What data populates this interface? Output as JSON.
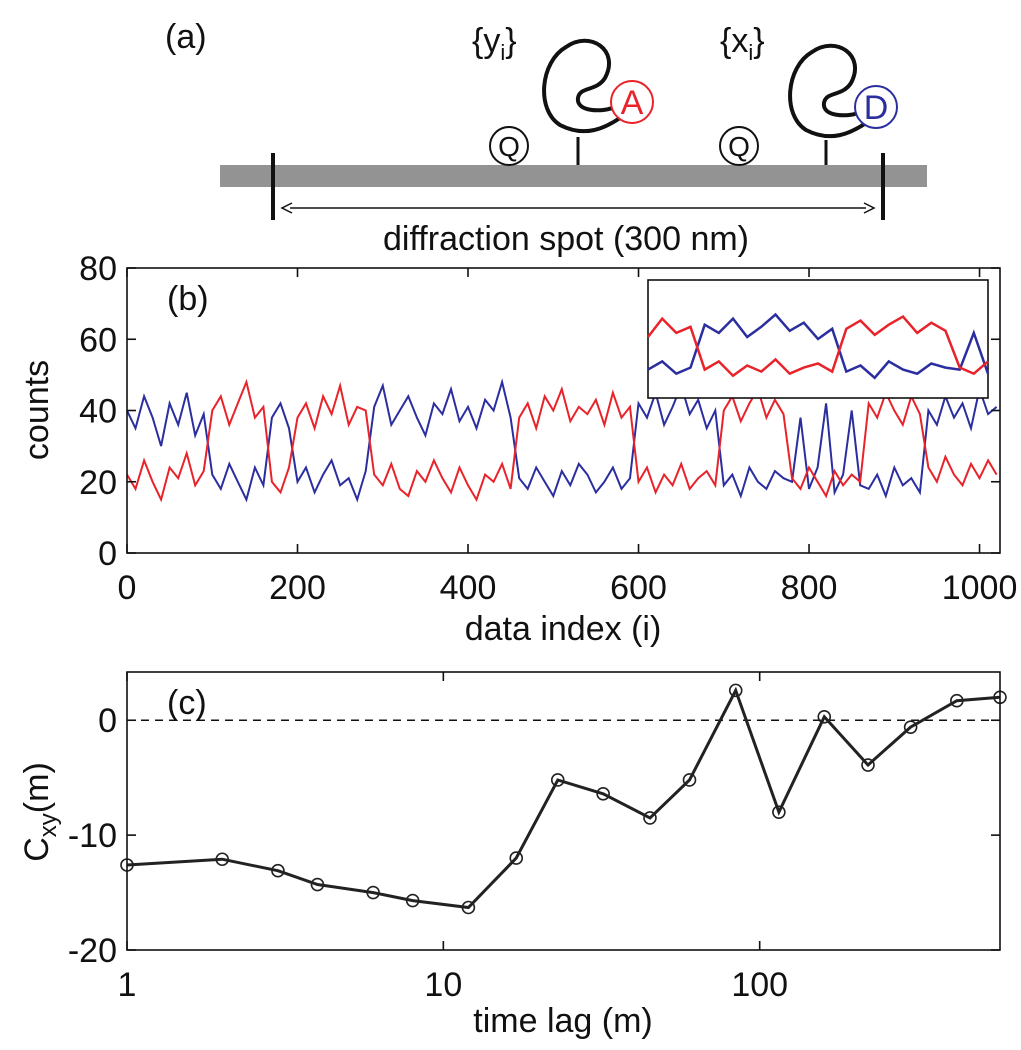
{
  "diagram": {
    "panel_label": "(a)",
    "y_open": "{y",
    "y_sub": "i",
    "y_close": "}",
    "x_open": "{x",
    "x_sub": "i",
    "x_close": "}",
    "acceptor": "A",
    "donor": "D",
    "quencher_1": "Q",
    "quencher_2": "Q",
    "spot_label": "diffraction spot (300 nm)"
  },
  "chart_data": [
    {
      "type": "line",
      "panel_label": "(b)",
      "x_label": "data index (i)",
      "y_label": "counts",
      "x": [
        0,
        10,
        20,
        30,
        40,
        50,
        60,
        70,
        80,
        90,
        100,
        110,
        120,
        130,
        140,
        150,
        160,
        170,
        180,
        190,
        200,
        210,
        220,
        230,
        240,
        250,
        260,
        270,
        280,
        290,
        300,
        310,
        320,
        330,
        340,
        350,
        360,
        370,
        380,
        390,
        400,
        410,
        420,
        430,
        440,
        450,
        460,
        470,
        480,
        490,
        500,
        510,
        520,
        530,
        540,
        550,
        560,
        570,
        580,
        590,
        600,
        610,
        620,
        630,
        640,
        650,
        660,
        670,
        680,
        690,
        700,
        710,
        720,
        730,
        740,
        750,
        760,
        770,
        780,
        790,
        800,
        810,
        820,
        830,
        840,
        850,
        860,
        870,
        880,
        890,
        900,
        910,
        920,
        930,
        940,
        950,
        960,
        970,
        980,
        990,
        1000,
        1010,
        1020
      ],
      "series": [
        {
          "name": "x_i",
          "color": "#2b2e9e",
          "values": [
            40,
            35,
            44,
            38,
            30,
            42,
            36,
            45,
            33,
            39,
            22,
            18,
            25,
            20,
            15,
            24,
            19,
            38,
            42,
            35,
            20,
            24,
            17,
            22,
            26,
            19,
            21,
            15,
            23,
            41,
            47,
            36,
            40,
            44,
            38,
            33,
            42,
            39,
            46,
            37,
            41,
            35,
            43,
            40,
            48,
            38,
            21,
            18,
            24,
            20,
            16,
            23,
            19,
            25,
            22,
            17,
            20,
            24,
            18,
            21,
            42,
            38,
            45,
            36,
            41,
            47,
            39,
            43,
            35,
            40,
            19,
            22,
            16,
            24,
            20,
            18,
            23,
            21,
            20,
            38,
            18,
            24,
            42,
            17,
            22,
            40,
            19,
            18,
            22,
            16,
            24,
            19,
            21,
            17,
            40,
            36,
            44,
            38,
            42,
            35,
            46,
            39,
            41
          ]
        },
        {
          "name": "y_i",
          "color": "#e8232a",
          "values": [
            22,
            18,
            26,
            20,
            15,
            24,
            21,
            28,
            19,
            23,
            40,
            44,
            36,
            42,
            48,
            38,
            41,
            20,
            17,
            24,
            38,
            42,
            35,
            44,
            39,
            47,
            36,
            41,
            40,
            22,
            19,
            25,
            18,
            16,
            23,
            20,
            26,
            21,
            17,
            24,
            19,
            15,
            22,
            20,
            25,
            18,
            38,
            42,
            35,
            44,
            40,
            46,
            37,
            41,
            39,
            43,
            36,
            45,
            38,
            41,
            20,
            24,
            17,
            22,
            19,
            25,
            18,
            21,
            23,
            19,
            40,
            44,
            37,
            42,
            46,
            38,
            43,
            39,
            21,
            18,
            24,
            20,
            16,
            23,
            19,
            22,
            20,
            42,
            38,
            45,
            40,
            36,
            44,
            39,
            24,
            20,
            27,
            22,
            19,
            25,
            21,
            26,
            22
          ]
        }
      ],
      "xlim": [
        0,
        1024
      ],
      "xticks": [
        0,
        200,
        400,
        600,
        800,
        1000
      ],
      "ylim": [
        0,
        80
      ],
      "yticks": [
        0,
        20,
        40,
        60,
        80
      ],
      "inset_xlim": [
        560,
        800
      ]
    },
    {
      "type": "line-marker",
      "panel_label": "(c)",
      "x_label": "time lag (m)",
      "y_label_main": "C",
      "y_label_sub": "xy",
      "y_label_tail": "(m)",
      "x": [
        1,
        2,
        3,
        4,
        6,
        8,
        12,
        17,
        23,
        32,
        45,
        60,
        84,
        115,
        160,
        220,
        300,
        420,
        575
      ],
      "values": [
        -12.6,
        -12.1,
        -13.1,
        -14.3,
        -15.0,
        -15.7,
        -16.3,
        -12.0,
        -5.2,
        -6.4,
        -8.5,
        -5.2,
        2.6,
        -8.0,
        0.3,
        -3.9,
        -0.6,
        1.7,
        2.0
      ],
      "color": "#222222",
      "log_x": true,
      "hline": 0,
      "xlim": [
        1,
        575
      ],
      "xticks": [
        1,
        10,
        100
      ],
      "ylim": [
        -20,
        4.2
      ],
      "yticks": [
        -20,
        -10,
        0
      ]
    }
  ]
}
